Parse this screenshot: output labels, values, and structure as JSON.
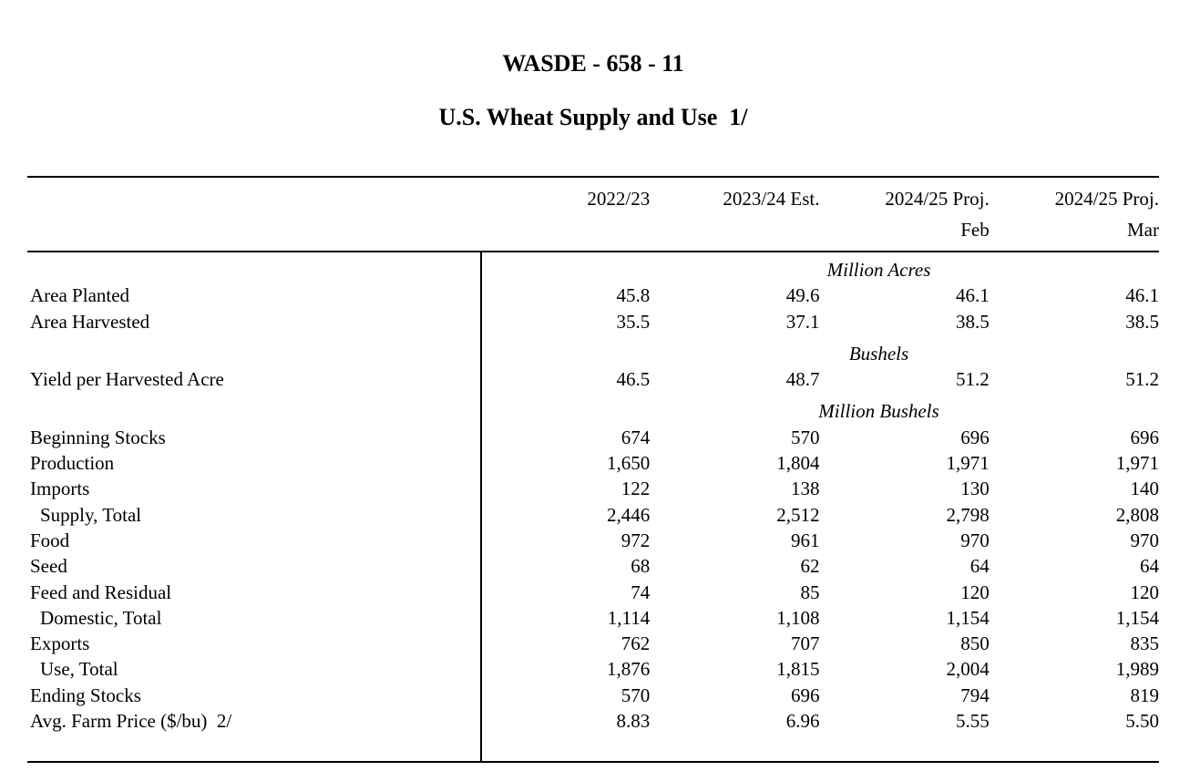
{
  "page": {
    "title": "WASDE - 658 - 11",
    "subtitle": "U.S. Wheat Supply and Use  1/"
  },
  "table": {
    "column_headers": [
      "2022/23",
      "2023/24 Est.",
      "2024/25 Proj.",
      "2024/25 Proj."
    ],
    "column_subheaders": [
      "",
      "",
      "Feb",
      "Mar"
    ],
    "rows": [
      {
        "type": "unit",
        "label": "Million Acres"
      },
      {
        "type": "data",
        "indent": false,
        "label": "Area Planted",
        "values": [
          "45.8",
          "49.6",
          "46.1",
          "46.1"
        ]
      },
      {
        "type": "data",
        "indent": false,
        "label": "Area Harvested",
        "values": [
          "35.5",
          "37.1",
          "38.5",
          "38.5"
        ]
      },
      {
        "type": "unit",
        "label": "Bushels"
      },
      {
        "type": "data",
        "indent": false,
        "label": "Yield per Harvested Acre",
        "values": [
          "46.5",
          "48.7",
          "51.2",
          "51.2"
        ]
      },
      {
        "type": "unit",
        "label": "Million Bushels"
      },
      {
        "type": "data",
        "indent": false,
        "label": "Beginning Stocks",
        "values": [
          "674",
          "570",
          "696",
          "696"
        ]
      },
      {
        "type": "data",
        "indent": false,
        "label": "Production",
        "values": [
          "1,650",
          "1,804",
          "1,971",
          "1,971"
        ]
      },
      {
        "type": "data",
        "indent": false,
        "label": "Imports",
        "values": [
          "122",
          "138",
          "130",
          "140"
        ]
      },
      {
        "type": "data",
        "indent": true,
        "label": "Supply, Total",
        "values": [
          "2,446",
          "2,512",
          "2,798",
          "2,808"
        ]
      },
      {
        "type": "data",
        "indent": false,
        "label": "Food",
        "values": [
          "972",
          "961",
          "970",
          "970"
        ]
      },
      {
        "type": "data",
        "indent": false,
        "label": "Seed",
        "values": [
          "68",
          "62",
          "64",
          "64"
        ]
      },
      {
        "type": "data",
        "indent": false,
        "label": "Feed and Residual",
        "values": [
          "74",
          "85",
          "120",
          "120"
        ]
      },
      {
        "type": "data",
        "indent": true,
        "label": "Domestic, Total",
        "values": [
          "1,114",
          "1,108",
          "1,154",
          "1,154"
        ]
      },
      {
        "type": "data",
        "indent": false,
        "label": "Exports",
        "values": [
          "762",
          "707",
          "850",
          "835"
        ]
      },
      {
        "type": "data",
        "indent": true,
        "label": "Use, Total",
        "values": [
          "1,876",
          "1,815",
          "2,004",
          "1,989"
        ]
      },
      {
        "type": "data",
        "indent": false,
        "label": "Ending Stocks",
        "values": [
          "570",
          "696",
          "794",
          "819"
        ]
      },
      {
        "type": "data",
        "indent": false,
        "label": "Avg. Farm Price ($/bu)  2/",
        "values": [
          "8.83",
          "6.96",
          "5.55",
          "5.50"
        ]
      }
    ]
  }
}
